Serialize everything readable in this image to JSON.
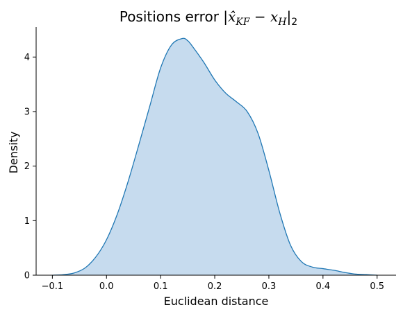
{
  "chart_data": {
    "type": "area",
    "title": {
      "prefix": "Positions error |",
      "math_base": "x̂",
      "math_sub1": "KF",
      "minus": " − x",
      "math_sub2": "H",
      "suffix": "|",
      "norm_sub": "2"
    },
    "xlabel": "Euclidean distance",
    "ylabel": "Density",
    "xlim": [
      -0.13,
      0.535
    ],
    "ylim": [
      0,
      4.55
    ],
    "xticks": [
      -0.1,
      0.0,
      0.1,
      0.2,
      0.3,
      0.4,
      0.5
    ],
    "xtick_labels": [
      "−0.1",
      "0.0",
      "0.1",
      "0.2",
      "0.3",
      "0.4",
      "0.5"
    ],
    "yticks": [
      0,
      1,
      2,
      3,
      4
    ],
    "ytick_labels": [
      "0",
      "1",
      "2",
      "3",
      "4"
    ],
    "grid": false,
    "color": "#1f77b4",
    "fill_color": "#c6dbee",
    "series": [
      {
        "x": [
          -0.1,
          -0.08,
          -0.06,
          -0.04,
          -0.02,
          0.0,
          0.02,
          0.04,
          0.06,
          0.08,
          0.1,
          0.12,
          0.14,
          0.15,
          0.16,
          0.18,
          0.2,
          0.22,
          0.24,
          0.26,
          0.28,
          0.3,
          0.32,
          0.34,
          0.36,
          0.38,
          0.4,
          0.42,
          0.44,
          0.46,
          0.48,
          0.5
        ],
        "y": [
          0.0,
          0.01,
          0.04,
          0.13,
          0.33,
          0.65,
          1.12,
          1.72,
          2.4,
          3.1,
          3.8,
          4.22,
          4.34,
          4.3,
          4.18,
          3.9,
          3.58,
          3.34,
          3.18,
          3.0,
          2.6,
          1.92,
          1.15,
          0.55,
          0.25,
          0.15,
          0.12,
          0.09,
          0.05,
          0.02,
          0.01,
          0.0
        ]
      }
    ]
  }
}
